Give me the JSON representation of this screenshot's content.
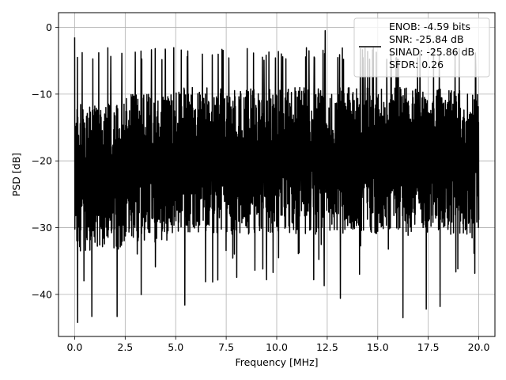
{
  "chart_data": {
    "type": "line",
    "title": "",
    "xlabel": "Frequency [MHz]",
    "ylabel": "PSD [dB]",
    "xlim": [
      -0.8,
      20.8
    ],
    "ylim": [
      -46.3,
      2.2
    ],
    "x_ticks": [
      0.0,
      2.5,
      5.0,
      7.5,
      10.0,
      12.5,
      15.0,
      17.5,
      20.0
    ],
    "x_tick_labels": [
      "0.0",
      "2.5",
      "5.0",
      "7.5",
      "10.0",
      "12.5",
      "15.0",
      "17.5",
      "20.0"
    ],
    "y_ticks": [
      0,
      -10,
      -20,
      -30,
      -40
    ],
    "y_tick_labels": [
      "0",
      "−10",
      "−20",
      "−30",
      "−40"
    ],
    "grid": true,
    "legend_position": "top-right",
    "line_color": "#000000",
    "series": [
      {
        "name": "ENOB: -4.59 bits\nSNR: -25.84 dB\nSINAD: -25.86 dB\nSFDR: 0.26",
        "x_range": [
          0.0,
          20.0
        ],
        "n_points": 2048,
        "typical_range": [
          -28,
          -5
        ],
        "notable_points": [
          {
            "x": 0.0,
            "y": -1.5
          },
          {
            "x": 0.15,
            "y": -44.2
          },
          {
            "x": 0.85,
            "y": -43.3
          },
          {
            "x": 2.1,
            "y": -43.3
          },
          {
            "x": 5.45,
            "y": -41.6
          },
          {
            "x": 9.5,
            "y": -37.8
          },
          {
            "x": 12.35,
            "y": -38.7
          },
          {
            "x": 13.15,
            "y": -40.6
          },
          {
            "x": 16.25,
            "y": -43.5
          },
          {
            "x": 17.4,
            "y": -42.2
          },
          {
            "x": 12.4,
            "y": -0.5
          },
          {
            "x": 11.6,
            "y": -3.5
          },
          {
            "x": 14.5,
            "y": -3.6
          },
          {
            "x": 19.85,
            "y": -6.3
          }
        ]
      }
    ]
  }
}
